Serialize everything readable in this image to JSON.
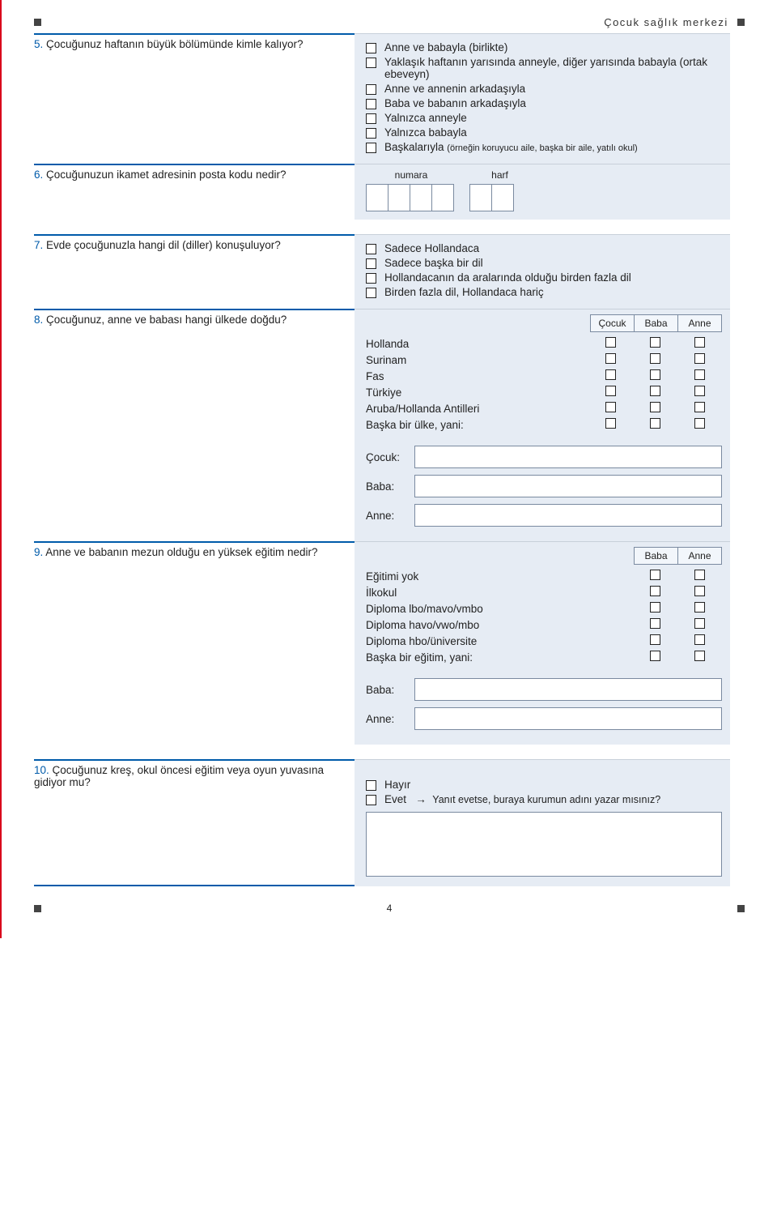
{
  "colors": {
    "accent_blue": "#005baa",
    "panel_bg": "#e6ecf4",
    "panel_border": "#c8d0da",
    "box_border": "#7a8aa0",
    "red_edge": "#d9001b",
    "text": "#222222",
    "marker": "#444444"
  },
  "header": {
    "title": "Çocuk sağlık merkezi"
  },
  "q5": {
    "num": "5.",
    "text": "Çocuğunuz haftanın büyük bölümünde kimle kalıyor?",
    "options": [
      "Anne ve babayla (birlikte)",
      "Yaklaşık haftanın yarısında anneyle, diğer yarısında babayla (ortak ebeveyn)",
      "Anne ve annenin arkadaşıyla",
      "Baba ve babanın arkadaşıyla",
      "Yalnızca anneyle",
      "Yalnızca babayla"
    ],
    "last_option_pre": "Başkalarıyla ",
    "last_option_note": "(örneğin koruyucu aile, başka bir aile, yatılı okul)"
  },
  "q6": {
    "num": "6.",
    "text": "Çocuğunuzun ikamet adresinin posta kodu nedir?",
    "label_num": "numara",
    "label_letter": "harf"
  },
  "q7": {
    "num": "7.",
    "text": "Evde çocuğunuzla hangi dil (diller) konuşuluyor?",
    "options": [
      "Sadece Hollandaca",
      "Sadece başka bir dil",
      "Hollandacanın da aralarında olduğu birden fazla dil",
      "Birden fazla dil, Hollandaca hariç"
    ]
  },
  "q8": {
    "num": "8.",
    "text": "Çocuğunuz, anne ve babası hangi ülkede doğdu?",
    "cols": [
      "Çocuk",
      "Baba",
      "Anne"
    ],
    "countries": [
      "Hollanda",
      "Surinam",
      "Fas",
      "Türkiye",
      "Aruba/Hollanda Antilleri",
      "Başka bir ülke, yani:"
    ],
    "fields": [
      "Çocuk:",
      "Baba:",
      "Anne:"
    ]
  },
  "q9": {
    "num": "9.",
    "text": "Anne ve babanın mezun olduğu en yüksek eğitim nedir?",
    "cols": [
      "Baba",
      "Anne"
    ],
    "levels": [
      "Eğitimi yok",
      "İlkokul",
      "Diploma lbo/mavo/vmbo",
      "Diploma havo/vwo/mbo",
      "Diploma hbo/üniversite",
      "Başka bir eğitim, yani:"
    ],
    "fields": [
      "Baba:",
      "Anne:"
    ]
  },
  "q10": {
    "num": "10.",
    "text": "Çocuğunuz kreş, okul öncesi eğitim veya oyun yuvasına gidiyor mu?",
    "opt_no": "Hayır",
    "opt_yes": "Evet",
    "yes_note": "Yanıt evetse, buraya kurumun adını yazar mısınız?"
  },
  "footer": {
    "page": "4"
  }
}
